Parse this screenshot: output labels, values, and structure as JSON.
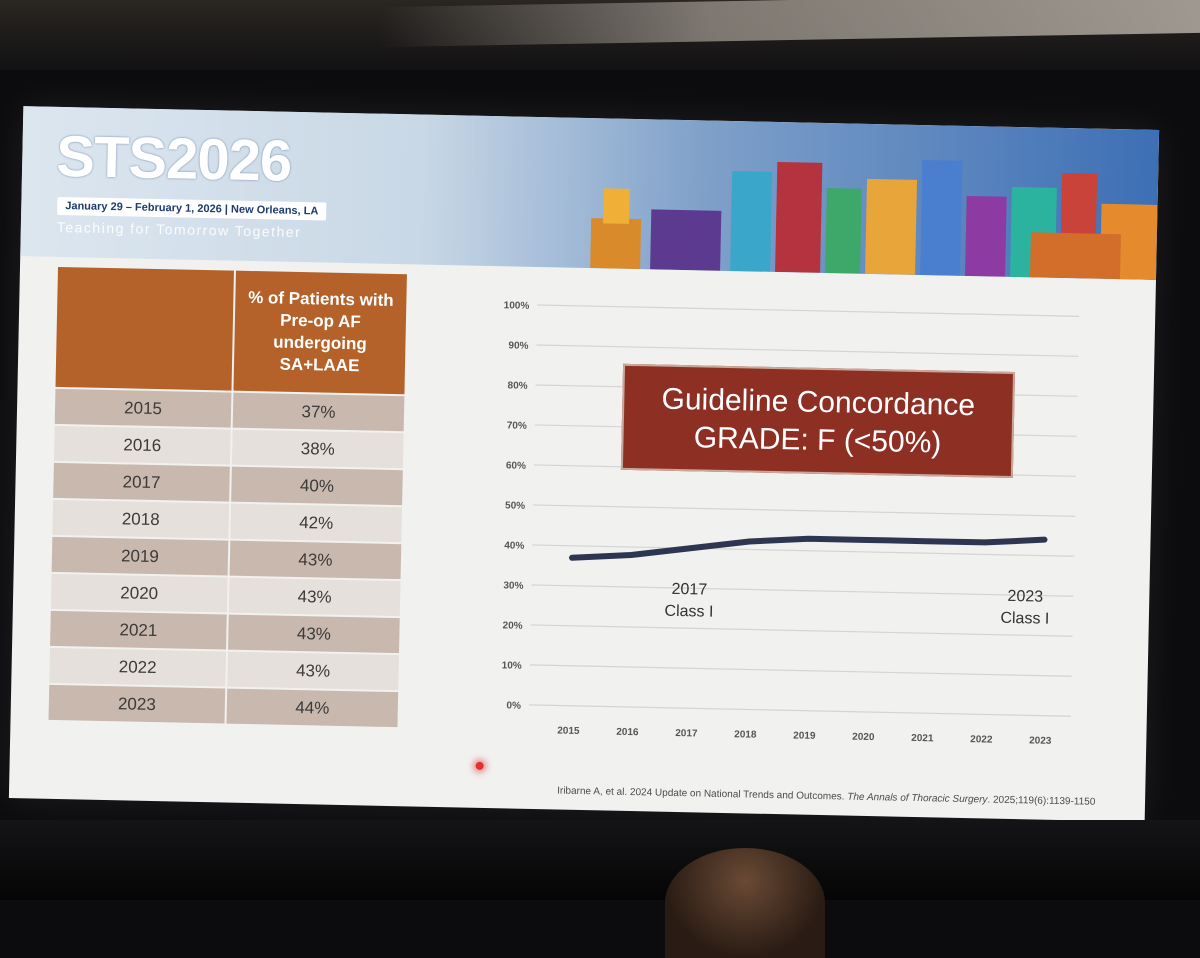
{
  "banner": {
    "logo": "STS2026",
    "dates": "January 29 – February 1, 2026 | New Orleans, LA",
    "tagline": "Teaching for Tomorrow Together"
  },
  "table": {
    "header_year": "",
    "header_value": "% of Patients with Pre-op AF undergoing SA+LAAE",
    "rows": [
      {
        "year": "2015",
        "value": "37%"
      },
      {
        "year": "2016",
        "value": "38%"
      },
      {
        "year": "2017",
        "value": "40%"
      },
      {
        "year": "2018",
        "value": "42%"
      },
      {
        "year": "2019",
        "value": "43%"
      },
      {
        "year": "2020",
        "value": "43%"
      },
      {
        "year": "2021",
        "value": "43%"
      },
      {
        "year": "2022",
        "value": "43%"
      },
      {
        "year": "2023",
        "value": "44%"
      }
    ]
  },
  "badge": {
    "line1": "Guideline Concordance",
    "line2": "GRADE: F (<50%)"
  },
  "citation": {
    "text": "Iribarne A, et al. 2024 Update on National Trends and Outcomes.",
    "journal": "The Annals of Thoracic Surgery",
    "details": ". 2025;119(6):1139-1150"
  },
  "chart_data": {
    "type": "line",
    "title": "",
    "xlabel": "",
    "ylabel": "",
    "x": [
      "2015",
      "2016",
      "2017",
      "2018",
      "2019",
      "2020",
      "2021",
      "2022",
      "2023"
    ],
    "series": [
      {
        "values": [
          37,
          38,
          40,
          42,
          43,
          43,
          43,
          43,
          44
        ]
      }
    ],
    "ylim": [
      0,
      100
    ],
    "yticks": [
      "0%",
      "10%",
      "20%",
      "30%",
      "40%",
      "50%",
      "60%",
      "70%",
      "80%",
      "90%",
      "100%"
    ],
    "grid": true,
    "line_color": "#2d3550",
    "annotations": [
      {
        "x": "2017",
        "year": "2017",
        "label": "Class I"
      },
      {
        "x": "2023",
        "year": "2023",
        "label": "Class I"
      }
    ]
  }
}
